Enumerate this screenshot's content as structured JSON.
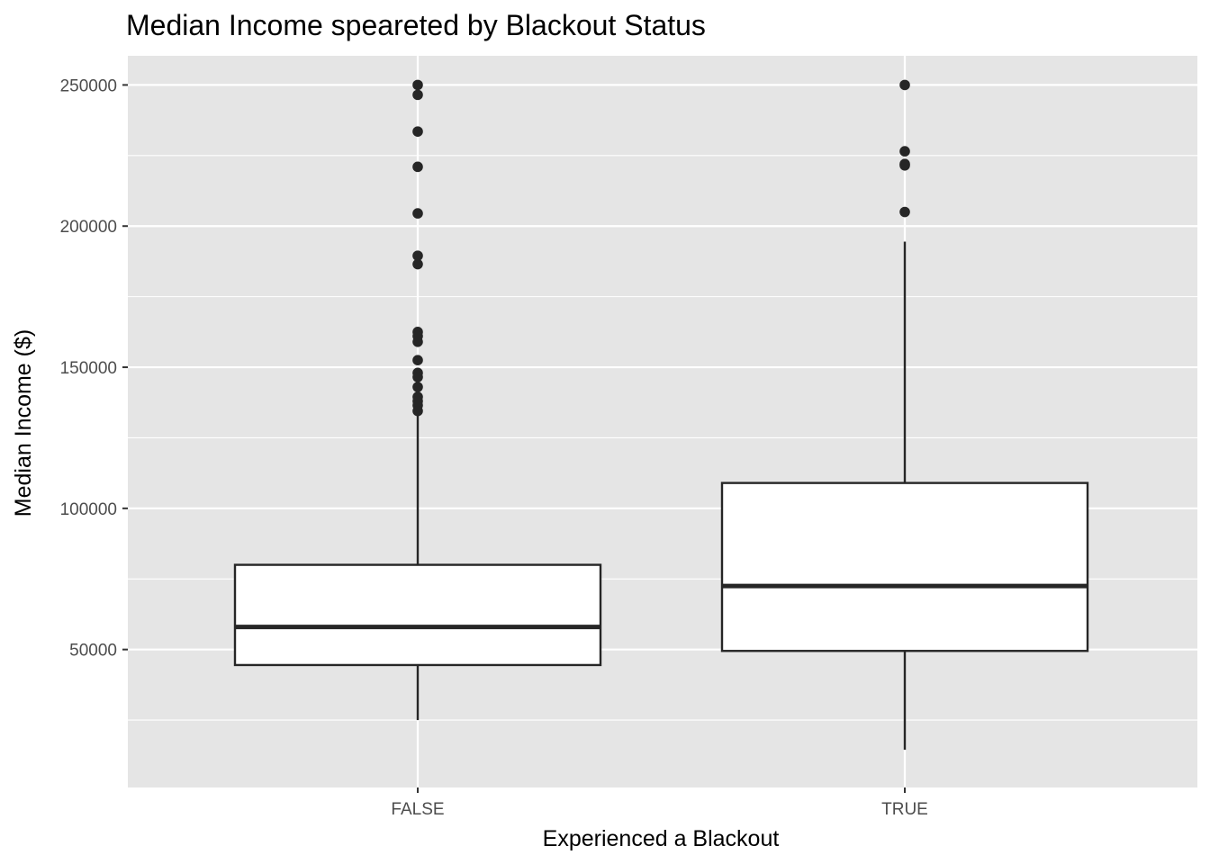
{
  "chart_data": {
    "type": "boxplot",
    "title": "Median Income speareted by Blackout Status",
    "xlabel": "Experienced a Blackout",
    "ylabel": "Median Income ($)",
    "ylim": [
      0,
      262000
    ],
    "y_ticks": [
      50000,
      100000,
      150000,
      200000,
      250000
    ],
    "y_tick_labels": [
      "50000",
      "100000",
      "150000",
      "200000",
      "250000"
    ],
    "grid": true,
    "legend": "none",
    "categories": [
      "FALSE",
      "TRUE"
    ],
    "boxes": [
      {
        "category": "FALSE",
        "whisker_low": 25000,
        "q1": 44500,
        "median": 58000,
        "q3": 80000,
        "whisker_high": 134500,
        "outliers": [
          250000,
          246500,
          233500,
          221000,
          204500,
          189500,
          186500,
          162500,
          161000,
          159000,
          152500,
          148000,
          146500,
          143000,
          139500,
          138000,
          136500,
          134500
        ]
      },
      {
        "category": "TRUE",
        "whisker_low": 14500,
        "q1": 49500,
        "median": 72500,
        "q3": 109000,
        "whisker_high": 194500,
        "outliers": [
          250000,
          226500,
          222000,
          221500,
          205000
        ]
      }
    ],
    "colors": {
      "panel_bg": "#e5e5e5",
      "grid": "#ffffff",
      "box_fill": "#ffffff",
      "box_line": "#262626",
      "points": "#262626"
    }
  }
}
